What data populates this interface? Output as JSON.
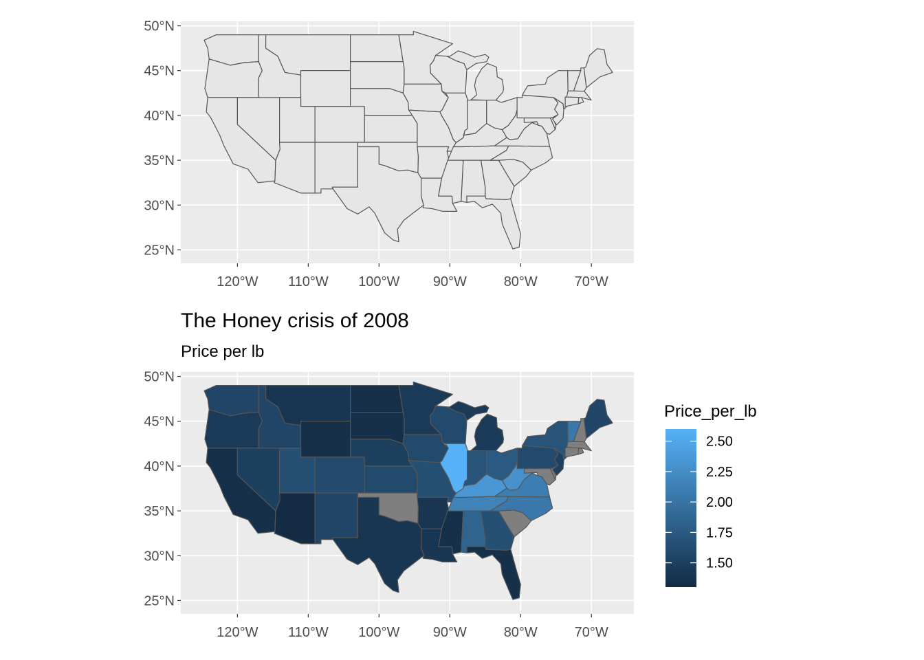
{
  "colors": {
    "panel_bg": "#ebebeb",
    "grid": "#ffffff",
    "state_fill_plain": "#e6e6e6",
    "state_border": "#555555",
    "na_fill": "#7f7f7f",
    "tick_text": "#4d4d4d",
    "scale_low": "#132b43",
    "scale_high": "#56b1f7"
  },
  "chart_data": [
    {
      "type": "map",
      "projection": "longitude/latitude",
      "xlim": [
        -128,
        -64
      ],
      "ylim": [
        23.5,
        50.5
      ],
      "x_ticks": [
        -120,
        -110,
        -100,
        -90,
        -80,
        -70
      ],
      "y_ticks": [
        25,
        30,
        35,
        40,
        45,
        50
      ],
      "x_tick_labels": [
        "120°W",
        "110°W",
        "100°W",
        "90°W",
        "80°W",
        "70°W"
      ],
      "y_tick_labels": [
        "25°N",
        "30°N",
        "35°N",
        "40°N",
        "45°N",
        "50°N"
      ],
      "fill": "none (uniform grey)",
      "title": "",
      "subtitle": ""
    },
    {
      "type": "choropleth",
      "projection": "longitude/latitude",
      "title": "The Honey crisis of 2008",
      "subtitle": "Price per lb",
      "xlim": [
        -128,
        -64
      ],
      "ylim": [
        23.5,
        50.5
      ],
      "x_ticks": [
        -120,
        -110,
        -100,
        -90,
        -80,
        -70
      ],
      "y_ticks": [
        25,
        30,
        35,
        40,
        45,
        50
      ],
      "x_tick_labels": [
        "120°W",
        "110°W",
        "100°W",
        "90°W",
        "80°W",
        "70°W"
      ],
      "y_tick_labels": [
        "25°N",
        "30°N",
        "35°N",
        "40°N",
        "45°N",
        "50°N"
      ],
      "legend": {
        "title": "Price_per_lb",
        "position": "right",
        "range": [
          1.3,
          2.6
        ],
        "breaks": [
          1.5,
          1.75,
          2.0,
          2.25,
          2.5
        ],
        "break_labels": [
          "1.50",
          "1.75",
          "2.00",
          "2.25",
          "2.50"
        ]
      },
      "values": {
        "WA": 1.55,
        "OR": 1.45,
        "CA": 1.35,
        "NV": 1.5,
        "ID": 1.55,
        "MT": 1.4,
        "WY": 1.35,
        "UT": 1.65,
        "AZ": 1.3,
        "CO": 1.6,
        "NM": 1.55,
        "ND": 1.35,
        "SD": 1.35,
        "NE": 1.5,
        "KS": 1.6,
        "OK": null,
        "TX": 1.4,
        "MN": 1.45,
        "IA": 1.6,
        "MO": 1.65,
        "AR": 1.4,
        "LA": 1.4,
        "WI": 1.6,
        "IL": 2.6,
        "MI": 1.45,
        "IN": 1.7,
        "OH": 1.75,
        "KY": 2.35,
        "TN": 2.15,
        "MS": 1.35,
        "AL": 1.85,
        "GA": 1.65,
        "FL": 1.35,
        "SC": null,
        "NC": 2.05,
        "VA": 2.1,
        "WV": 2.3,
        "PA": 1.6,
        "NY": 1.7,
        "ME": 1.55,
        "VT": 2.05,
        "NH": null,
        "MA": null,
        "CT": null,
        "RI": null,
        "NJ": 1.5,
        "DE": null,
        "MD": null
      }
    }
  ]
}
